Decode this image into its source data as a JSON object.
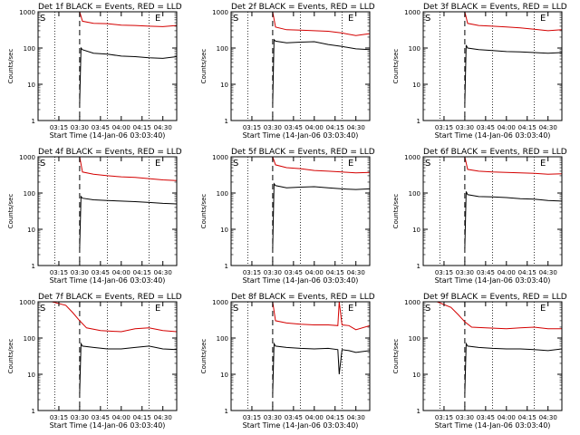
{
  "common": {
    "ylabel": "Counts/sec",
    "xlabel": "Start Time (14-Jan-06 03:03:40)",
    "xticks": [
      "03:15",
      "03:30",
      "03:45",
      "04:00",
      "04:15",
      "04:30"
    ],
    "yticks": [
      "1",
      "10",
      "100",
      "1000"
    ],
    "marker_s": "S",
    "marker_e": "E",
    "xlim_minutes_after_03_00": [
      0,
      100
    ],
    "ylim": [
      1,
      1000
    ],
    "yscale": "log",
    "colors": {
      "events": "#000000",
      "lld": "#d40000",
      "axes": "#000000"
    }
  },
  "panels": [
    {
      "title": "Det 1f BLACK = Events, RED = LLD"
    },
    {
      "title": "Det 2f BLACK = Events, RED = LLD"
    },
    {
      "title": "Det 3f BLACK = Events, RED = LLD"
    },
    {
      "title": "Det 4f BLACK = Events, RED = LLD"
    },
    {
      "title": "Det 5f BLACK = Events, RED = LLD"
    },
    {
      "title": "Det 6f BLACK = Events, RED = LLD"
    },
    {
      "title": "Det 7f BLACK = Events, RED = LLD"
    },
    {
      "title": "Det 8f BLACK = Events, RED = LLD"
    },
    {
      "title": "Det 9f BLACK = Events, RED = LLD"
    }
  ],
  "chart_data": [
    {
      "type": "line",
      "title": "Det 1f BLACK = Events, RED = LLD",
      "ylabel": "Counts/sec",
      "xlabel": "Start Time (14-Jan-06 03:03:40)",
      "yscale": "log",
      "ylim": [
        1,
        1000
      ],
      "vlines_dotted": [
        "03:12",
        "03:50",
        "04:20"
      ],
      "vline_dashed": "03:30",
      "series": [
        {
          "name": "LLD",
          "x": [
            "03:30",
            "03:32",
            "03:40",
            "03:50",
            "04:00",
            "04:10",
            "04:20",
            "04:30",
            "04:40"
          ],
          "values": [
            1000,
            550,
            480,
            470,
            430,
            420,
            400,
            390,
            420
          ]
        },
        {
          "name": "Events",
          "x": [
            "03:30",
            "03:31",
            "03:32",
            "03:40",
            "03:50",
            "04:00",
            "04:10",
            "04:20",
            "04:30",
            "04:40"
          ],
          "values": [
            3,
            100,
            90,
            72,
            68,
            60,
            58,
            54,
            52,
            58
          ]
        }
      ]
    },
    {
      "type": "line",
      "title": "Det 2f BLACK = Events, RED = LLD",
      "ylabel": "Counts/sec",
      "xlabel": "Start Time (14-Jan-06 03:03:40)",
      "yscale": "log",
      "ylim": [
        1,
        1000
      ],
      "vlines_dotted": [
        "03:12",
        "03:50",
        "04:20"
      ],
      "vline_dashed": "03:30",
      "series": [
        {
          "name": "LLD",
          "x": [
            "03:30",
            "03:32",
            "03:40",
            "03:50",
            "04:00",
            "04:10",
            "04:20",
            "04:30",
            "04:40"
          ],
          "values": [
            1000,
            380,
            320,
            310,
            300,
            290,
            260,
            220,
            250
          ]
        },
        {
          "name": "Events",
          "x": [
            "03:30",
            "03:31",
            "03:32",
            "03:40",
            "03:50",
            "04:00",
            "04:10",
            "04:20",
            "04:30",
            "04:40"
          ],
          "values": [
            3,
            170,
            155,
            140,
            145,
            150,
            125,
            110,
            95,
            90
          ]
        }
      ]
    },
    {
      "type": "line",
      "title": "Det 3f BLACK = Events, RED = LLD",
      "ylabel": "Counts/sec",
      "xlabel": "Start Time (14-Jan-06 03:03:40)",
      "yscale": "log",
      "ylim": [
        1,
        1000
      ],
      "vlines_dotted": [
        "03:12",
        "03:50",
        "04:20"
      ],
      "vline_dashed": "03:30",
      "series": [
        {
          "name": "LLD",
          "x": [
            "03:30",
            "03:32",
            "03:40",
            "03:50",
            "04:00",
            "04:10",
            "04:20",
            "04:30",
            "04:40"
          ],
          "values": [
            1000,
            480,
            420,
            400,
            380,
            360,
            330,
            300,
            320
          ]
        },
        {
          "name": "Events",
          "x": [
            "03:30",
            "03:31",
            "03:32",
            "03:40",
            "03:50",
            "04:00",
            "04:10",
            "04:20",
            "04:30",
            "04:40"
          ],
          "values": [
            3,
            120,
            100,
            90,
            85,
            80,
            78,
            75,
            72,
            75
          ]
        }
      ]
    },
    {
      "type": "line",
      "title": "Det 4f BLACK = Events, RED = LLD",
      "ylabel": "Counts/sec",
      "xlabel": "Start Time (14-Jan-06 03:03:40)",
      "yscale": "log",
      "ylim": [
        1,
        1000
      ],
      "vlines_dotted": [
        "03:12",
        "03:50",
        "04:20"
      ],
      "vline_dashed": "03:30",
      "series": [
        {
          "name": "LLD",
          "x": [
            "03:30",
            "03:32",
            "03:40",
            "03:50",
            "04:00",
            "04:10",
            "04:20",
            "04:30",
            "04:40"
          ],
          "values": [
            1000,
            380,
            330,
            300,
            280,
            270,
            250,
            230,
            220
          ]
        },
        {
          "name": "Events",
          "x": [
            "03:30",
            "03:31",
            "03:32",
            "03:40",
            "03:50",
            "04:00",
            "04:10",
            "04:20",
            "04:30",
            "04:40"
          ],
          "values": [
            3,
            80,
            72,
            65,
            62,
            60,
            58,
            55,
            52,
            50
          ]
        }
      ]
    },
    {
      "type": "line",
      "title": "Det 5f BLACK = Events, RED = LLD",
      "ylabel": "Counts/sec",
      "xlabel": "Start Time (14-Jan-06 03:03:40)",
      "yscale": "log",
      "ylim": [
        1,
        1000
      ],
      "vlines_dotted": [
        "03:12",
        "03:50",
        "04:20"
      ],
      "vline_dashed": "03:30",
      "series": [
        {
          "name": "LLD",
          "x": [
            "03:30",
            "03:32",
            "03:40",
            "03:50",
            "04:00",
            "04:10",
            "04:20",
            "04:30",
            "04:40"
          ],
          "values": [
            1000,
            600,
            500,
            470,
            420,
            400,
            380,
            360,
            370
          ]
        },
        {
          "name": "Events",
          "x": [
            "03:30",
            "03:31",
            "03:32",
            "03:40",
            "03:50",
            "04:00",
            "04:10",
            "04:20",
            "04:30",
            "04:40"
          ],
          "values": [
            3,
            180,
            160,
            140,
            145,
            150,
            140,
            130,
            125,
            130
          ]
        }
      ]
    },
    {
      "type": "line",
      "title": "Det 6f BLACK = Events, RED = LLD",
      "ylabel": "Counts/sec",
      "xlabel": "Start Time (14-Jan-06 03:03:40)",
      "yscale": "log",
      "ylim": [
        1,
        1000
      ],
      "vlines_dotted": [
        "03:12",
        "03:50",
        "04:20"
      ],
      "vline_dashed": "03:30",
      "series": [
        {
          "name": "LLD",
          "x": [
            "03:30",
            "03:32",
            "03:40",
            "03:50",
            "04:00",
            "04:10",
            "04:20",
            "04:30",
            "04:40"
          ],
          "values": [
            1000,
            450,
            400,
            380,
            370,
            360,
            350,
            330,
            340
          ]
        },
        {
          "name": "Events",
          "x": [
            "03:30",
            "03:31",
            "03:32",
            "03:40",
            "03:50",
            "04:00",
            "04:10",
            "04:20",
            "04:30",
            "04:40"
          ],
          "values": [
            3,
            110,
            90,
            80,
            78,
            75,
            70,
            68,
            62,
            60
          ]
        }
      ]
    },
    {
      "type": "line",
      "title": "Det 7f BLACK = Events, RED = LLD",
      "ylabel": "Counts/sec",
      "xlabel": "Start Time (14-Jan-06 03:03:40)",
      "yscale": "log",
      "ylim": [
        1,
        1000
      ],
      "vlines_dotted": [
        "03:12",
        "03:50",
        "04:20"
      ],
      "vline_dashed": "03:30",
      "series": [
        {
          "name": "LLD",
          "x": [
            "03:00",
            "03:10",
            "03:20",
            "03:25",
            "03:30",
            "03:35",
            "03:45",
            "04:00",
            "04:10",
            "04:20",
            "04:30",
            "04:40"
          ],
          "values": [
            1000,
            1000,
            800,
            500,
            300,
            190,
            160,
            150,
            180,
            190,
            160,
            150
          ]
        },
        {
          "name": "Events",
          "x": [
            "03:30",
            "03:31",
            "03:32",
            "03:40",
            "03:50",
            "04:00",
            "04:10",
            "04:20",
            "04:30",
            "04:40"
          ],
          "values": [
            3,
            70,
            60,
            55,
            50,
            50,
            55,
            60,
            50,
            48
          ]
        }
      ]
    },
    {
      "type": "line",
      "title": "Det 8f BLACK = Events, RED = LLD",
      "ylabel": "Counts/sec",
      "xlabel": "Start Time (14-Jan-06 03:03:40)",
      "yscale": "log",
      "ylim": [
        1,
        1000
      ],
      "vlines_dotted": [
        "03:12",
        "03:50",
        "04:20"
      ],
      "vline_dashed": "03:30",
      "series": [
        {
          "name": "LLD",
          "x": [
            "03:30",
            "03:32",
            "03:40",
            "03:50",
            "04:00",
            "04:10",
            "04:17",
            "04:18",
            "04:20",
            "04:25",
            "04:30",
            "04:40"
          ],
          "values": [
            1000,
            300,
            260,
            240,
            230,
            230,
            220,
            1000,
            230,
            220,
            170,
            220
          ]
        },
        {
          "name": "Events",
          "x": [
            "03:30",
            "03:31",
            "03:32",
            "03:40",
            "03:50",
            "04:00",
            "04:10",
            "04:17",
            "04:18",
            "04:20",
            "04:25",
            "04:30",
            "04:40"
          ],
          "values": [
            3,
            70,
            60,
            55,
            52,
            50,
            52,
            48,
            10,
            48,
            45,
            40,
            45
          ]
        }
      ]
    },
    {
      "type": "line",
      "title": "Det 9f BLACK = Events, RED = LLD",
      "ylabel": "Counts/sec",
      "xlabel": "Start Time (14-Jan-06 03:03:40)",
      "yscale": "log",
      "ylim": [
        1,
        1000
      ],
      "vlines_dotted": [
        "03:12",
        "03:50",
        "04:20"
      ],
      "vline_dashed": "03:30",
      "series": [
        {
          "name": "LLD",
          "x": [
            "03:00",
            "03:10",
            "03:20",
            "03:25",
            "03:30",
            "03:35",
            "03:45",
            "04:00",
            "04:10",
            "04:20",
            "04:30",
            "04:40"
          ],
          "values": [
            1000,
            1000,
            700,
            450,
            280,
            200,
            190,
            180,
            190,
            200,
            180,
            180
          ]
        },
        {
          "name": "Events",
          "x": [
            "03:30",
            "03:31",
            "03:32",
            "03:40",
            "03:50",
            "04:00",
            "04:10",
            "04:20",
            "04:30",
            "04:40"
          ],
          "values": [
            3,
            70,
            60,
            55,
            52,
            50,
            50,
            48,
            45,
            50
          ]
        }
      ]
    }
  ]
}
